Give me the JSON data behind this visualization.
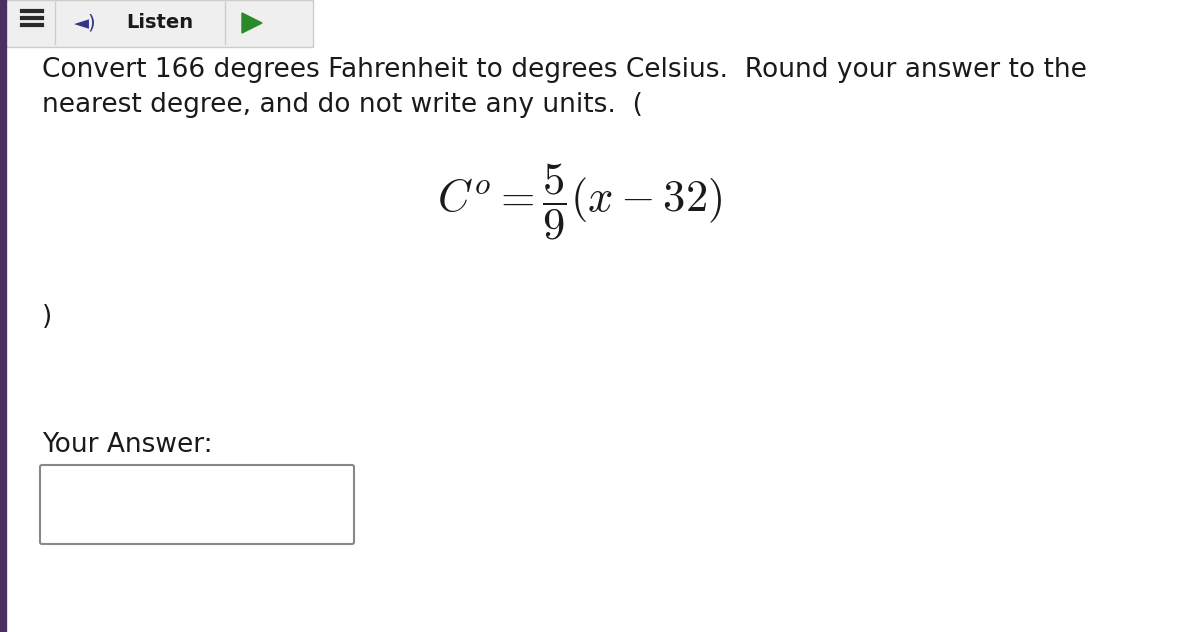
{
  "bg_color": "#ffffff",
  "header_bg": "#efefef",
  "question_text_line1": "Convert 166 degrees Fahrenheit to degrees Celsius.  Round your answer to the",
  "question_text_line2": "nearest degree, and do not write any units.  (",
  "formula": "$C^o = \\dfrac{5}{9}(x - 32)$",
  "closing_paren": ")",
  "your_answer_label": "Your Answer:",
  "text_color": "#1a1a1a",
  "font_size_body": 19,
  "font_size_formula": 32,
  "left_border_color": "#4a3060",
  "header_border_color": "#cccccc",
  "box_color": "#888888"
}
